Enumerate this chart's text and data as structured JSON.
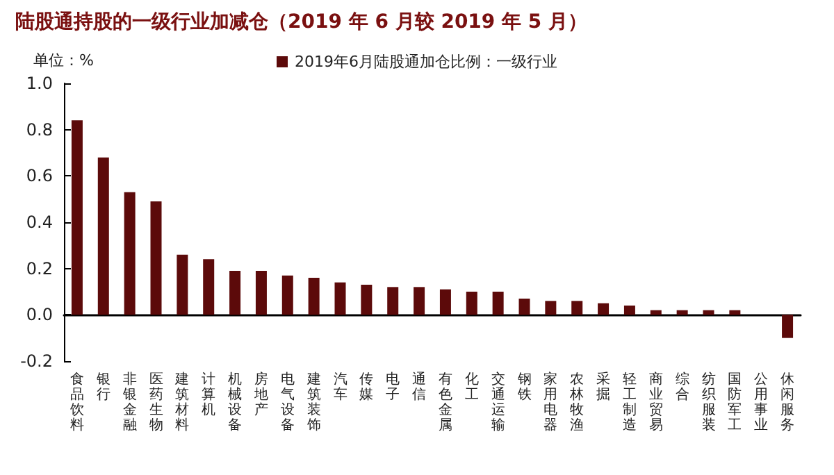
{
  "chart_data": {
    "type": "bar",
    "title": "陆股通持股的一级行业加减仓（2019 年 6 月较 2019 年 5 月）",
    "ylabel": "单位：%",
    "categories": [
      "食品饮料",
      "银行",
      "非银金融",
      "医药生物",
      "建筑材料",
      "计算机",
      "机械设备",
      "房地产",
      "电气设备",
      "建筑装饰",
      "汽车",
      "传媒",
      "电子",
      "通信",
      "有色金属",
      "化工",
      "交通运输",
      "钢铁",
      "家用电器",
      "农林牧渔",
      "采掘",
      "轻工制造",
      "商业贸易",
      "综合",
      "纺织服装",
      "国防军工",
      "公用事业",
      "休闲服务"
    ],
    "series": [
      {
        "name": "2019年6月陆股通加仓比例：一级行业",
        "color": "#5c0a0a",
        "values": [
          0.84,
          0.68,
          0.53,
          0.49,
          0.26,
          0.24,
          0.19,
          0.19,
          0.17,
          0.16,
          0.14,
          0.13,
          0.12,
          0.12,
          0.11,
          0.1,
          0.1,
          0.07,
          0.06,
          0.06,
          0.05,
          0.04,
          0.02,
          0.02,
          0.02,
          0.02,
          0,
          -0.1
        ]
      }
    ],
    "ylim": [
      -0.2,
      1.0
    ],
    "yticks": [
      {
        "value": 1.0,
        "label": "1.0"
      },
      0.8,
      0.6,
      0.4,
      0.2,
      {
        "value": 0,
        "label": "0.0"
      },
      -0.2
    ],
    "legend": "top"
  }
}
